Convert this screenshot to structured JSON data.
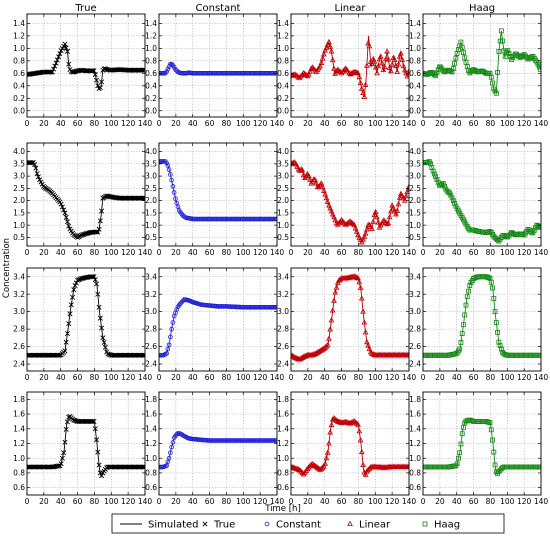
{
  "figure": {
    "column_titles": [
      "True",
      "Constant",
      "Linear",
      "Haag"
    ],
    "ylabel": "Concentration",
    "xlabel": "Time [h]",
    "legend": [
      {
        "label": "Simulated",
        "marker": "line",
        "color": "#000000"
      },
      {
        "label": "True",
        "marker": "x",
        "color": "#000000"
      },
      {
        "label": "Constant",
        "marker": "circle",
        "color": "#1f1fd6"
      },
      {
        "label": "Linear",
        "marker": "triangle",
        "color": "#c00000"
      },
      {
        "label": "Haag",
        "marker": "square",
        "color": "#118811"
      }
    ],
    "colors": {
      "true": "#000000",
      "constant": "#1f1fd6",
      "linear": "#c00000",
      "haag": "#118811",
      "band": "#f4a6d0"
    }
  },
  "chart_data": [
    {
      "type": "line",
      "row": 1,
      "title": "True",
      "method": "true",
      "xlim": [
        0,
        140
      ],
      "ylim": [
        -0.1,
        1.55
      ],
      "xticks": [
        0,
        20,
        40,
        60,
        80,
        100,
        120,
        140
      ],
      "yticks": [
        0.0,
        0.2,
        0.4,
        0.6,
        0.8,
        1.0,
        1.2,
        1.4
      ],
      "ytick_format": 1,
      "x": [
        0,
        10,
        20,
        30,
        35,
        40,
        45,
        48,
        50,
        53,
        56,
        60,
        65,
        70,
        75,
        80,
        84,
        86,
        88,
        90,
        92,
        95,
        100,
        110,
        120,
        130,
        140
      ],
      "y": [
        0.58,
        0.6,
        0.62,
        0.62,
        0.78,
        0.95,
        1.07,
        0.95,
        0.68,
        0.62,
        0.62,
        0.64,
        0.65,
        0.64,
        0.64,
        0.64,
        0.4,
        0.34,
        0.4,
        0.65,
        0.68,
        0.66,
        0.65,
        0.66,
        0.65,
        0.65,
        0.65
      ]
    },
    {
      "type": "line",
      "row": 1,
      "title": "Constant",
      "method": "constant",
      "xlim": [
        0,
        140
      ],
      "ylim": [
        -0.1,
        1.55
      ],
      "xticks": [
        0,
        20,
        40,
        60,
        80,
        100,
        120,
        140
      ],
      "yticks": [
        0.0,
        0.2,
        0.4,
        0.6,
        0.8,
        1.0,
        1.2,
        1.4
      ],
      "ytick_format": 1,
      "x": [
        0,
        8,
        11,
        14,
        17,
        20,
        24,
        28,
        32,
        36,
        40,
        50,
        60,
        80,
        100,
        120,
        140
      ],
      "y": [
        0.6,
        0.6,
        0.68,
        0.76,
        0.72,
        0.65,
        0.61,
        0.6,
        0.6,
        0.61,
        0.6,
        0.6,
        0.6,
        0.6,
        0.6,
        0.6,
        0.6
      ]
    },
    {
      "type": "line",
      "row": 1,
      "title": "Linear",
      "method": "linear",
      "xlim": [
        0,
        140
      ],
      "ylim": [
        -0.1,
        1.55
      ],
      "xticks": [
        0,
        20,
        40,
        60,
        80,
        100,
        120,
        140
      ],
      "yticks": [
        0.0,
        0.2,
        0.4,
        0.6,
        0.8,
        1.0,
        1.2,
        1.4
      ],
      "ytick_format": 1,
      "x": [
        0,
        5,
        10,
        15,
        20,
        25,
        30,
        35,
        40,
        45,
        48,
        52,
        55,
        60,
        65,
        70,
        75,
        80,
        84,
        87,
        89,
        92,
        95,
        98,
        102,
        106,
        110,
        114,
        118,
        122,
        126,
        130,
        134,
        138,
        140
      ],
      "y": [
        0.56,
        0.58,
        0.52,
        0.6,
        0.55,
        0.7,
        0.62,
        0.72,
        0.95,
        1.1,
        0.95,
        0.58,
        0.66,
        0.6,
        0.68,
        0.58,
        0.62,
        0.6,
        0.35,
        0.22,
        0.48,
        1.2,
        0.7,
        0.85,
        0.6,
        0.9,
        0.62,
        0.95,
        0.6,
        0.88,
        0.62,
        0.95,
        0.68,
        0.55,
        0.65
      ]
    },
    {
      "type": "line",
      "row": 1,
      "title": "Haag",
      "method": "haag",
      "xlim": [
        0,
        140
      ],
      "ylim": [
        -0.1,
        1.55
      ],
      "xticks": [
        0,
        20,
        40,
        60,
        80,
        100,
        120,
        140
      ],
      "yticks": [
        0.0,
        0.2,
        0.4,
        0.6,
        0.8,
        1.0,
        1.2,
        1.4
      ],
      "ytick_format": 1,
      "x": [
        0,
        5,
        10,
        15,
        20,
        25,
        30,
        35,
        40,
        45,
        50,
        55,
        60,
        65,
        70,
        75,
        80,
        84,
        87,
        90,
        93,
        97,
        100,
        105,
        110,
        115,
        120,
        125,
        130,
        135,
        140
      ],
      "y": [
        0.6,
        0.58,
        0.62,
        0.56,
        0.72,
        0.62,
        0.65,
        0.62,
        0.9,
        1.1,
        0.82,
        0.6,
        0.66,
        0.62,
        0.64,
        0.6,
        0.6,
        0.35,
        0.28,
        0.95,
        1.28,
        0.85,
        0.98,
        0.82,
        0.92,
        0.85,
        0.9,
        0.82,
        0.88,
        0.78,
        0.65
      ]
    },
    {
      "type": "line",
      "row": 2,
      "title": "True",
      "method": "true",
      "xlim": [
        0,
        140
      ],
      "ylim": [
        0.15,
        4.35
      ],
      "xticks": [
        0,
        20,
        40,
        60,
        80,
        100,
        120,
        140
      ],
      "yticks": [
        0.5,
        1.0,
        1.5,
        2.0,
        2.5,
        3.0,
        3.5,
        4.0
      ],
      "ytick_format": 1,
      "x": [
        0,
        4,
        8,
        10,
        12,
        15,
        20,
        25,
        30,
        35,
        40,
        45,
        50,
        55,
        60,
        65,
        70,
        75,
        80,
        85,
        88,
        90,
        95,
        100,
        110,
        120,
        130,
        140
      ],
      "y": [
        3.55,
        3.55,
        3.55,
        3.4,
        3.1,
        2.85,
        2.55,
        2.45,
        2.3,
        2.1,
        1.9,
        1.5,
        0.9,
        0.62,
        0.5,
        0.6,
        0.65,
        0.7,
        0.72,
        0.72,
        1.4,
        2.1,
        2.2,
        2.15,
        2.1,
        2.1,
        2.1,
        2.1
      ]
    },
    {
      "type": "line",
      "row": 2,
      "title": "Constant",
      "method": "constant",
      "xlim": [
        0,
        140
      ],
      "ylim": [
        0.15,
        4.35
      ],
      "xticks": [
        0,
        20,
        40,
        60,
        80,
        100,
        120,
        140
      ],
      "yticks": [
        0.5,
        1.0,
        1.5,
        2.0,
        2.5,
        3.0,
        3.5,
        4.0
      ],
      "ytick_format": 1,
      "x": [
        0,
        5,
        8,
        11,
        14,
        17,
        20,
        24,
        28,
        32,
        36,
        40,
        50,
        60,
        80,
        100,
        120,
        140
      ],
      "y": [
        3.6,
        3.6,
        3.6,
        3.4,
        3.0,
        2.5,
        2.0,
        1.6,
        1.4,
        1.3,
        1.28,
        1.25,
        1.25,
        1.25,
        1.25,
        1.25,
        1.25,
        1.25
      ]
    },
    {
      "type": "line",
      "row": 2,
      "title": "Linear",
      "method": "linear",
      "xlim": [
        0,
        140
      ],
      "ylim": [
        0.15,
        4.35
      ],
      "xticks": [
        0,
        20,
        40,
        60,
        80,
        100,
        120,
        140
      ],
      "yticks": [
        0.5,
        1.0,
        1.5,
        2.0,
        2.5,
        3.0,
        3.5,
        4.0
      ],
      "ytick_format": 1,
      "x": [
        0,
        5,
        10,
        13,
        16,
        20,
        24,
        28,
        32,
        36,
        40,
        45,
        50,
        55,
        60,
        65,
        70,
        75,
        80,
        84,
        88,
        92,
        96,
        100,
        105,
        110,
        115,
        120,
        125,
        130,
        135,
        140
      ],
      "y": [
        3.5,
        3.55,
        3.2,
        3.3,
        2.9,
        3.1,
        2.7,
        2.9,
        2.5,
        2.7,
        2.3,
        1.8,
        1.4,
        1.0,
        1.2,
        1.0,
        1.15,
        1.0,
        0.55,
        0.3,
        0.6,
        1.05,
        0.85,
        1.6,
        0.9,
        1.2,
        1.0,
        1.8,
        1.4,
        2.3,
        2.0,
        2.6
      ]
    },
    {
      "type": "line",
      "row": 2,
      "title": "Haag",
      "method": "haag",
      "xlim": [
        0,
        140
      ],
      "ylim": [
        0.15,
        4.35
      ],
      "xticks": [
        0,
        20,
        40,
        60,
        80,
        100,
        120,
        140
      ],
      "yticks": [
        0.5,
        1.0,
        1.5,
        2.0,
        2.5,
        3.0,
        3.5,
        4.0
      ],
      "ytick_format": 1,
      "x": [
        0,
        5,
        8,
        12,
        16,
        20,
        24,
        28,
        32,
        36,
        40,
        45,
        50,
        55,
        60,
        65,
        70,
        75,
        80,
        85,
        90,
        95,
        100,
        105,
        110,
        115,
        120,
        125,
        130,
        135,
        140
      ],
      "y": [
        3.55,
        3.55,
        3.6,
        3.2,
        2.9,
        2.6,
        2.7,
        2.4,
        2.3,
        2.0,
        1.7,
        1.4,
        1.1,
        0.8,
        0.8,
        0.75,
        0.72,
        0.7,
        0.75,
        0.5,
        0.35,
        0.6,
        0.5,
        0.7,
        0.6,
        0.65,
        0.6,
        0.85,
        0.65,
        1.0,
        0.9
      ]
    },
    {
      "type": "line",
      "row": 3,
      "title": "True",
      "method": "true",
      "xlim": [
        0,
        140
      ],
      "ylim": [
        2.32,
        3.5
      ],
      "xticks": [
        0,
        20,
        40,
        60,
        80,
        100,
        120,
        140
      ],
      "yticks": [
        2.4,
        2.6,
        2.8,
        3.0,
        3.2,
        3.4
      ],
      "ytick_format": 1,
      "x": [
        0,
        10,
        20,
        30,
        40,
        45,
        48,
        52,
        56,
        60,
        65,
        70,
        75,
        80,
        83,
        86,
        90,
        95,
        100,
        110,
        120,
        130,
        140
      ],
      "y": [
        2.5,
        2.5,
        2.5,
        2.5,
        2.5,
        2.55,
        2.75,
        3.05,
        3.28,
        3.36,
        3.38,
        3.39,
        3.4,
        3.4,
        3.3,
        3.0,
        2.7,
        2.52,
        2.5,
        2.5,
        2.5,
        2.5,
        2.5
      ]
    },
    {
      "type": "line",
      "row": 3,
      "title": "Constant",
      "method": "constant",
      "xlim": [
        0,
        140
      ],
      "ylim": [
        2.32,
        3.5
      ],
      "xticks": [
        0,
        20,
        40,
        60,
        80,
        100,
        120,
        140
      ],
      "yticks": [
        2.4,
        2.6,
        2.8,
        3.0,
        3.2,
        3.4
      ],
      "ytick_format": 1,
      "x": [
        0,
        5,
        9,
        12,
        15,
        18,
        22,
        26,
        30,
        35,
        40,
        50,
        60,
        70,
        80,
        100,
        120,
        140
      ],
      "y": [
        2.5,
        2.5,
        2.52,
        2.62,
        2.8,
        2.95,
        3.05,
        3.1,
        3.14,
        3.13,
        3.11,
        3.08,
        3.07,
        3.06,
        3.06,
        3.05,
        3.05,
        3.05
      ]
    },
    {
      "type": "line",
      "row": 3,
      "title": "Linear",
      "method": "linear",
      "xlim": [
        0,
        140
      ],
      "ylim": [
        2.32,
        3.5
      ],
      "xticks": [
        0,
        20,
        40,
        60,
        80,
        100,
        120,
        140
      ],
      "yticks": [
        2.4,
        2.6,
        2.8,
        3.0,
        3.2,
        3.4
      ],
      "ytick_format": 1,
      "x": [
        0,
        5,
        10,
        15,
        20,
        25,
        30,
        35,
        40,
        44,
        48,
        52,
        56,
        60,
        65,
        70,
        75,
        80,
        83,
        86,
        90,
        95,
        100,
        110,
        120,
        130,
        140
      ],
      "y": [
        2.5,
        2.47,
        2.45,
        2.48,
        2.5,
        2.5,
        2.52,
        2.55,
        2.58,
        2.62,
        2.9,
        3.2,
        3.35,
        3.38,
        3.38,
        3.39,
        3.4,
        3.38,
        3.25,
        2.95,
        2.65,
        2.52,
        2.5,
        2.5,
        2.5,
        2.5,
        2.5
      ]
    },
    {
      "type": "line",
      "row": 3,
      "title": "Haag",
      "method": "haag",
      "xlim": [
        0,
        140
      ],
      "ylim": [
        2.32,
        3.5
      ],
      "xticks": [
        0,
        20,
        40,
        60,
        80,
        100,
        120,
        140
      ],
      "yticks": [
        2.4,
        2.6,
        2.8,
        3.0,
        3.2,
        3.4
      ],
      "ytick_format": 1,
      "x": [
        0,
        10,
        20,
        30,
        40,
        44,
        48,
        52,
        56,
        60,
        65,
        70,
        75,
        80,
        83,
        86,
        90,
        95,
        100,
        110,
        120,
        130,
        140
      ],
      "y": [
        2.5,
        2.5,
        2.5,
        2.5,
        2.52,
        2.58,
        2.85,
        3.15,
        3.32,
        3.38,
        3.4,
        3.4,
        3.4,
        3.38,
        3.25,
        2.95,
        2.65,
        2.52,
        2.5,
        2.5,
        2.5,
        2.5,
        2.5
      ]
    },
    {
      "type": "line",
      "row": 4,
      "title": "True",
      "method": "true",
      "xlim": [
        0,
        140
      ],
      "ylim": [
        0.5,
        1.9
      ],
      "xticks": [
        0,
        20,
        40,
        60,
        80,
        100,
        120,
        140
      ],
      "yticks": [
        0.6,
        0.8,
        1.0,
        1.2,
        1.4,
        1.6,
        1.8
      ],
      "ytick_format": 1,
      "x": [
        0,
        10,
        20,
        30,
        40,
        44,
        47,
        50,
        55,
        60,
        65,
        70,
        75,
        80,
        83,
        86,
        88,
        90,
        95,
        100,
        110,
        120,
        130,
        140
      ],
      "y": [
        0.88,
        0.88,
        0.88,
        0.88,
        0.9,
        1.1,
        1.45,
        1.58,
        1.52,
        1.5,
        1.5,
        1.5,
        1.5,
        1.5,
        1.2,
        0.85,
        0.75,
        0.8,
        0.88,
        0.88,
        0.88,
        0.88,
        0.88,
        0.88
      ]
    },
    {
      "type": "line",
      "row": 4,
      "title": "Constant",
      "method": "constant",
      "xlim": [
        0,
        140
      ],
      "ylim": [
        0.5,
        1.9
      ],
      "xticks": [
        0,
        20,
        40,
        60,
        80,
        100,
        120,
        140
      ],
      "yticks": [
        0.6,
        0.8,
        1.0,
        1.2,
        1.4,
        1.6,
        1.8
      ],
      "ytick_format": 1,
      "x": [
        0,
        5,
        9,
        12,
        15,
        18,
        22,
        26,
        30,
        35,
        40,
        50,
        60,
        70,
        80,
        100,
        120,
        140
      ],
      "y": [
        0.88,
        0.88,
        0.9,
        1.0,
        1.15,
        1.28,
        1.34,
        1.33,
        1.3,
        1.27,
        1.26,
        1.25,
        1.24,
        1.24,
        1.24,
        1.24,
        1.24,
        1.24
      ]
    },
    {
      "type": "line",
      "row": 4,
      "title": "Linear",
      "method": "linear",
      "xlim": [
        0,
        140
      ],
      "ylim": [
        0.5,
        1.9
      ],
      "xticks": [
        0,
        20,
        40,
        60,
        80,
        100,
        120,
        140
      ],
      "yticks": [
        0.6,
        0.8,
        1.0,
        1.2,
        1.4,
        1.6,
        1.8
      ],
      "ytick_format": 1,
      "x": [
        0,
        5,
        10,
        15,
        20,
        25,
        30,
        35,
        40,
        44,
        47,
        50,
        55,
        60,
        65,
        70,
        75,
        80,
        83,
        86,
        88,
        90,
        95,
        100,
        110,
        120,
        130,
        140
      ],
      "y": [
        0.88,
        0.86,
        0.84,
        0.78,
        0.86,
        0.92,
        0.88,
        0.84,
        0.9,
        1.1,
        1.4,
        1.55,
        1.5,
        1.48,
        1.49,
        1.47,
        1.5,
        1.45,
        1.2,
        0.85,
        0.76,
        0.82,
        0.88,
        0.88,
        0.87,
        0.88,
        0.88,
        0.88
      ]
    },
    {
      "type": "line",
      "row": 4,
      "title": "Haag",
      "method": "haag",
      "xlim": [
        0,
        140
      ],
      "ylim": [
        0.5,
        1.9
      ],
      "xticks": [
        0,
        20,
        40,
        60,
        80,
        100,
        120,
        140
      ],
      "yticks": [
        0.6,
        0.8,
        1.0,
        1.2,
        1.4,
        1.6,
        1.8
      ],
      "ytick_format": 1,
      "x": [
        0,
        10,
        20,
        30,
        40,
        44,
        47,
        50,
        55,
        60,
        65,
        70,
        75,
        80,
        83,
        86,
        88,
        90,
        95,
        100,
        110,
        120,
        130,
        140
      ],
      "y": [
        0.88,
        0.88,
        0.88,
        0.88,
        0.9,
        1.1,
        1.38,
        1.5,
        1.52,
        1.5,
        1.5,
        1.5,
        1.5,
        1.48,
        1.2,
        0.85,
        0.78,
        0.82,
        0.88,
        0.88,
        0.88,
        0.88,
        0.88,
        0.88
      ]
    }
  ]
}
